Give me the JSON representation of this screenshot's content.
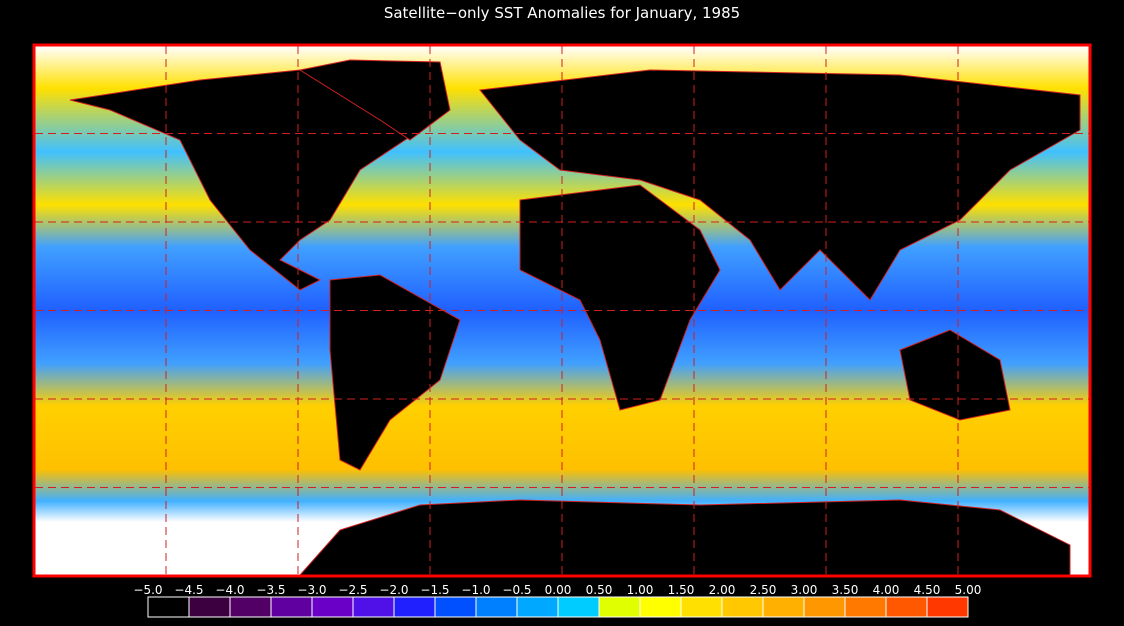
{
  "title": "Satellite−only SST Anomalies for January, 1985",
  "colorbar": {
    "ticks": [
      {
        "value": -5,
        "label": "−5.0"
      },
      {
        "value": -4.5,
        "label": "−4.5"
      },
      {
        "value": -4,
        "label": "−4.0"
      },
      {
        "value": -3.5,
        "label": "−3.5"
      },
      {
        "value": -3,
        "label": "−3.0"
      },
      {
        "value": -2.5,
        "label": "−2.5"
      },
      {
        "value": -2,
        "label": "−2.0"
      },
      {
        "value": -1.5,
        "label": "−1.5"
      },
      {
        "value": -1,
        "label": "−1.0"
      },
      {
        "value": -0.5,
        "label": "−0.5"
      },
      {
        "value": 0,
        "label": "0.00"
      },
      {
        "value": 0.5,
        "label": "0.50"
      },
      {
        "value": 1,
        "label": "1.00"
      },
      {
        "value": 1.5,
        "label": "1.50"
      },
      {
        "value": 2,
        "label": "2.00"
      },
      {
        "value": 2.5,
        "label": "2.50"
      },
      {
        "value": 3,
        "label": "3.00"
      },
      {
        "value": 3.5,
        "label": "3.50"
      },
      {
        "value": 4,
        "label": "4.00"
      },
      {
        "value": 4.5,
        "label": "4.50"
      },
      {
        "value": 5,
        "label": "5.00"
      }
    ],
    "colors": [
      "#000000",
      "#3c0040",
      "#520066",
      "#6000a0",
      "#6a00c8",
      "#5010e8",
      "#2020ff",
      "#0050ff",
      "#0080ff",
      "#00a8ff",
      "#00ccff",
      "#e0ff00",
      "#ffff00",
      "#ffe000",
      "#ffc800",
      "#ffb000",
      "#ff9800",
      "#ff7800",
      "#ff5800",
      "#ff3800"
    ]
  }
}
